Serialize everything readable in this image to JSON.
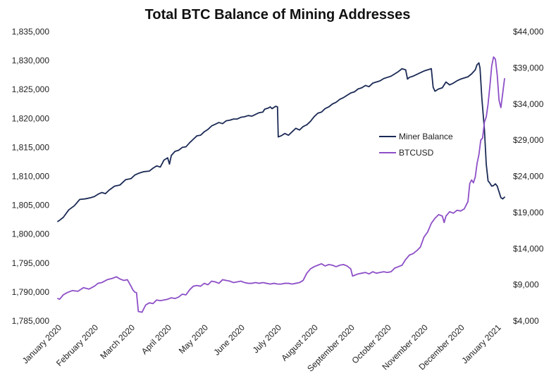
{
  "chart_data": {
    "type": "line",
    "title": "Total BTC Balance of Mining Addresses",
    "xlabel": "",
    "ylabel": "",
    "legend_position": "center-right",
    "grid": false,
    "x_ticks": [
      "January 2020",
      "February 2020",
      "March 2020",
      "April 2020",
      "May 2020",
      "June 2020",
      "July 2020",
      "August 2020",
      "September 2020",
      "October 2020",
      "November 2020",
      "December 2020",
      "January 2021"
    ],
    "y_left": {
      "range": [
        1785000,
        1835000
      ],
      "ticks": [
        1785000,
        1790000,
        1795000,
        1800000,
        1805000,
        1810000,
        1815000,
        1820000,
        1825000,
        1830000,
        1835000
      ],
      "tick_labels": [
        "1,785,000",
        "1,790,000",
        "1,795,000",
        "1,800,000",
        "1,805,000",
        "1,810,000",
        "1,815,000",
        "1,820,000",
        "1,825,000",
        "1,830,000",
        "1,835,000"
      ]
    },
    "y_right": {
      "range": [
        4000,
        44000
      ],
      "ticks": [
        4000,
        9000,
        14000,
        19000,
        24000,
        29000,
        34000,
        39000,
        44000
      ],
      "tick_labels": [
        "$4,000",
        "$9,000",
        "$14,000",
        "$19,000",
        "$24,000",
        "$29,000",
        "$34,000",
        "$39,000",
        "$44,000"
      ]
    },
    "series": [
      {
        "name": "Miner Balance",
        "axis": "left",
        "color": "#1b2a55",
        "points": [
          [
            0.0,
            1802200
          ],
          [
            0.05,
            1802400
          ],
          [
            0.15,
            1802900
          ],
          [
            0.3,
            1804200
          ],
          [
            0.45,
            1804900
          ],
          [
            0.6,
            1806000
          ],
          [
            0.75,
            1806100
          ],
          [
            0.9,
            1806300
          ],
          [
            1.0,
            1806500
          ],
          [
            1.1,
            1806900
          ],
          [
            1.2,
            1807200
          ],
          [
            1.3,
            1807000
          ],
          [
            1.4,
            1807600
          ],
          [
            1.55,
            1808300
          ],
          [
            1.7,
            1808500
          ],
          [
            1.85,
            1809400
          ],
          [
            2.0,
            1809600
          ],
          [
            2.1,
            1810200
          ],
          [
            2.2,
            1810500
          ],
          [
            2.35,
            1810800
          ],
          [
            2.5,
            1810900
          ],
          [
            2.6,
            1811400
          ],
          [
            2.7,
            1811800
          ],
          [
            2.8,
            1811600
          ],
          [
            2.9,
            1812800
          ],
          [
            3.0,
            1813200
          ],
          [
            3.05,
            1812100
          ],
          [
            3.1,
            1813600
          ],
          [
            3.2,
            1814300
          ],
          [
            3.3,
            1814500
          ],
          [
            3.4,
            1815000
          ],
          [
            3.5,
            1815100
          ],
          [
            3.6,
            1815800
          ],
          [
            3.7,
            1816400
          ],
          [
            3.8,
            1817000
          ],
          [
            3.9,
            1817100
          ],
          [
            4.0,
            1817700
          ],
          [
            4.1,
            1818100
          ],
          [
            4.2,
            1818700
          ],
          [
            4.3,
            1819000
          ],
          [
            4.4,
            1819300
          ],
          [
            4.5,
            1819100
          ],
          [
            4.6,
            1819600
          ],
          [
            4.7,
            1819700
          ],
          [
            4.8,
            1819900
          ],
          [
            4.9,
            1819900
          ],
          [
            5.0,
            1820200
          ],
          [
            5.1,
            1820300
          ],
          [
            5.2,
            1820500
          ],
          [
            5.3,
            1820400
          ],
          [
            5.4,
            1820700
          ],
          [
            5.5,
            1821000
          ],
          [
            5.6,
            1821100
          ],
          [
            5.65,
            1821600
          ],
          [
            5.75,
            1821800
          ],
          [
            5.8,
            1822000
          ],
          [
            5.85,
            1821700
          ],
          [
            5.9,
            1821900
          ],
          [
            5.95,
            1822100
          ],
          [
            6.0,
            1822000
          ],
          [
            6.02,
            1816800
          ],
          [
            6.1,
            1817000
          ],
          [
            6.2,
            1817400
          ],
          [
            6.3,
            1817100
          ],
          [
            6.4,
            1817700
          ],
          [
            6.5,
            1818300
          ],
          [
            6.6,
            1818000
          ],
          [
            6.7,
            1818600
          ],
          [
            6.8,
            1818900
          ],
          [
            6.9,
            1819500
          ],
          [
            7.0,
            1820300
          ],
          [
            7.1,
            1820900
          ],
          [
            7.2,
            1821100
          ],
          [
            7.3,
            1821700
          ],
          [
            7.4,
            1822000
          ],
          [
            7.5,
            1822500
          ],
          [
            7.6,
            1822800
          ],
          [
            7.7,
            1823300
          ],
          [
            7.8,
            1823600
          ],
          [
            7.9,
            1824000
          ],
          [
            8.0,
            1824400
          ],
          [
            8.1,
            1824600
          ],
          [
            8.2,
            1825100
          ],
          [
            8.3,
            1825300
          ],
          [
            8.4,
            1825700
          ],
          [
            8.5,
            1825500
          ],
          [
            8.6,
            1826100
          ],
          [
            8.7,
            1826300
          ],
          [
            8.8,
            1826500
          ],
          [
            8.9,
            1826900
          ],
          [
            9.0,
            1827100
          ],
          [
            9.1,
            1827300
          ],
          [
            9.2,
            1827700
          ],
          [
            9.3,
            1828100
          ],
          [
            9.4,
            1828600
          ],
          [
            9.5,
            1828400
          ],
          [
            9.55,
            1826800
          ],
          [
            9.6,
            1827100
          ],
          [
            9.7,
            1827300
          ],
          [
            9.8,
            1827600
          ],
          [
            9.9,
            1827900
          ],
          [
            10.0,
            1828200
          ],
          [
            10.1,
            1828400
          ],
          [
            10.2,
            1828600
          ],
          [
            10.25,
            1825400
          ],
          [
            10.3,
            1824700
          ],
          [
            10.4,
            1825100
          ],
          [
            10.5,
            1825300
          ],
          [
            10.6,
            1826300
          ],
          [
            10.7,
            1825800
          ],
          [
            10.8,
            1826100
          ],
          [
            10.9,
            1826500
          ],
          [
            11.0,
            1826800
          ],
          [
            11.1,
            1827000
          ],
          [
            11.2,
            1827200
          ],
          [
            11.3,
            1827700
          ],
          [
            11.4,
            1828400
          ],
          [
            11.45,
            1829300
          ],
          [
            11.5,
            1829600
          ],
          [
            11.53,
            1828700
          ],
          [
            11.58,
            1823500
          ],
          [
            11.65,
            1818100
          ],
          [
            11.7,
            1812100
          ],
          [
            11.75,
            1809200
          ],
          [
            11.8,
            1808800
          ],
          [
            11.85,
            1808300
          ],
          [
            11.9,
            1808400
          ],
          [
            11.95,
            1808700
          ],
          [
            12.0,
            1808300
          ],
          [
            12.05,
            1807300
          ],
          [
            12.1,
            1806300
          ],
          [
            12.15,
            1806100
          ],
          [
            12.2,
            1806400
          ]
        ]
      },
      {
        "name": "BTCUSD",
        "axis": "right",
        "color": "#8d4fc7",
        "points": [
          [
            0.0,
            7100
          ],
          [
            0.05,
            7000
          ],
          [
            0.15,
            7600
          ],
          [
            0.25,
            7900
          ],
          [
            0.4,
            8200
          ],
          [
            0.55,
            8100
          ],
          [
            0.7,
            8600
          ],
          [
            0.85,
            8400
          ],
          [
            1.0,
            8800
          ],
          [
            1.1,
            9200
          ],
          [
            1.2,
            9300
          ],
          [
            1.35,
            9700
          ],
          [
            1.5,
            9900
          ],
          [
            1.6,
            10100
          ],
          [
            1.7,
            9800
          ],
          [
            1.8,
            9600
          ],
          [
            1.9,
            9700
          ],
          [
            2.0,
            8800
          ],
          [
            2.05,
            8300
          ],
          [
            2.1,
            8000
          ],
          [
            2.15,
            7900
          ],
          [
            2.2,
            5300
          ],
          [
            2.3,
            5200
          ],
          [
            2.4,
            6200
          ],
          [
            2.5,
            6500
          ],
          [
            2.6,
            6400
          ],
          [
            2.7,
            6900
          ],
          [
            2.8,
            6800
          ],
          [
            2.9,
            6900
          ],
          [
            3.0,
            7000
          ],
          [
            3.1,
            7200
          ],
          [
            3.2,
            7100
          ],
          [
            3.3,
            7300
          ],
          [
            3.4,
            7700
          ],
          [
            3.5,
            7600
          ],
          [
            3.6,
            8300
          ],
          [
            3.7,
            8800
          ],
          [
            3.8,
            8900
          ],
          [
            3.9,
            8800
          ],
          [
            4.0,
            9200
          ],
          [
            4.1,
            9000
          ],
          [
            4.2,
            9500
          ],
          [
            4.3,
            9400
          ],
          [
            4.4,
            9200
          ],
          [
            4.5,
            9700
          ],
          [
            4.6,
            9600
          ],
          [
            4.7,
            9500
          ],
          [
            4.8,
            9300
          ],
          [
            4.9,
            9400
          ],
          [
            5.0,
            9500
          ],
          [
            5.1,
            9300
          ],
          [
            5.2,
            9200
          ],
          [
            5.3,
            9200
          ],
          [
            5.4,
            9300
          ],
          [
            5.5,
            9200
          ],
          [
            5.6,
            9300
          ],
          [
            5.7,
            9200
          ],
          [
            5.8,
            9100
          ],
          [
            5.9,
            9200
          ],
          [
            6.0,
            9100
          ],
          [
            6.1,
            9100
          ],
          [
            6.2,
            9200
          ],
          [
            6.3,
            9200
          ],
          [
            6.4,
            9100
          ],
          [
            6.5,
            9200
          ],
          [
            6.6,
            9300
          ],
          [
            6.7,
            9600
          ],
          [
            6.8,
            10600
          ],
          [
            6.9,
            11200
          ],
          [
            7.0,
            11500
          ],
          [
            7.1,
            11700
          ],
          [
            7.2,
            11900
          ],
          [
            7.3,
            11600
          ],
          [
            7.4,
            11800
          ],
          [
            7.5,
            11700
          ],
          [
            7.6,
            11500
          ],
          [
            7.7,
            11700
          ],
          [
            7.8,
            11800
          ],
          [
            7.9,
            11600
          ],
          [
            8.0,
            11200
          ],
          [
            8.05,
            10200
          ],
          [
            8.1,
            10300
          ],
          [
            8.2,
            10500
          ],
          [
            8.3,
            10600
          ],
          [
            8.4,
            10700
          ],
          [
            8.5,
            10500
          ],
          [
            8.6,
            10800
          ],
          [
            8.7,
            10600
          ],
          [
            8.8,
            10700
          ],
          [
            8.9,
            10800
          ],
          [
            9.0,
            10700
          ],
          [
            9.1,
            10800
          ],
          [
            9.2,
            11300
          ],
          [
            9.3,
            11500
          ],
          [
            9.4,
            11700
          ],
          [
            9.5,
            12500
          ],
          [
            9.6,
            13100
          ],
          [
            9.7,
            13300
          ],
          [
            9.8,
            13700
          ],
          [
            9.9,
            14200
          ],
          [
            10.0,
            15600
          ],
          [
            10.1,
            16300
          ],
          [
            10.2,
            17500
          ],
          [
            10.3,
            18200
          ],
          [
            10.4,
            18700
          ],
          [
            10.5,
            18500
          ],
          [
            10.55,
            17600
          ],
          [
            10.6,
            18500
          ],
          [
            10.7,
            19100
          ],
          [
            10.8,
            18900
          ],
          [
            10.9,
            19300
          ],
          [
            11.0,
            19200
          ],
          [
            11.1,
            19500
          ],
          [
            11.2,
            20500
          ],
          [
            11.25,
            23000
          ],
          [
            11.3,
            23500
          ],
          [
            11.35,
            23100
          ],
          [
            11.4,
            23900
          ],
          [
            11.45,
            25800
          ],
          [
            11.5,
            27000
          ],
          [
            11.55,
            29000
          ],
          [
            11.6,
            29300
          ],
          [
            11.65,
            31500
          ],
          [
            11.7,
            32200
          ],
          [
            11.75,
            34000
          ],
          [
            11.8,
            36500
          ],
          [
            11.85,
            39300
          ],
          [
            11.9,
            40500
          ],
          [
            11.95,
            40200
          ],
          [
            12.0,
            38000
          ],
          [
            12.05,
            34500
          ],
          [
            12.1,
            33500
          ],
          [
            12.15,
            35500
          ],
          [
            12.2,
            37500
          ]
        ]
      }
    ]
  }
}
